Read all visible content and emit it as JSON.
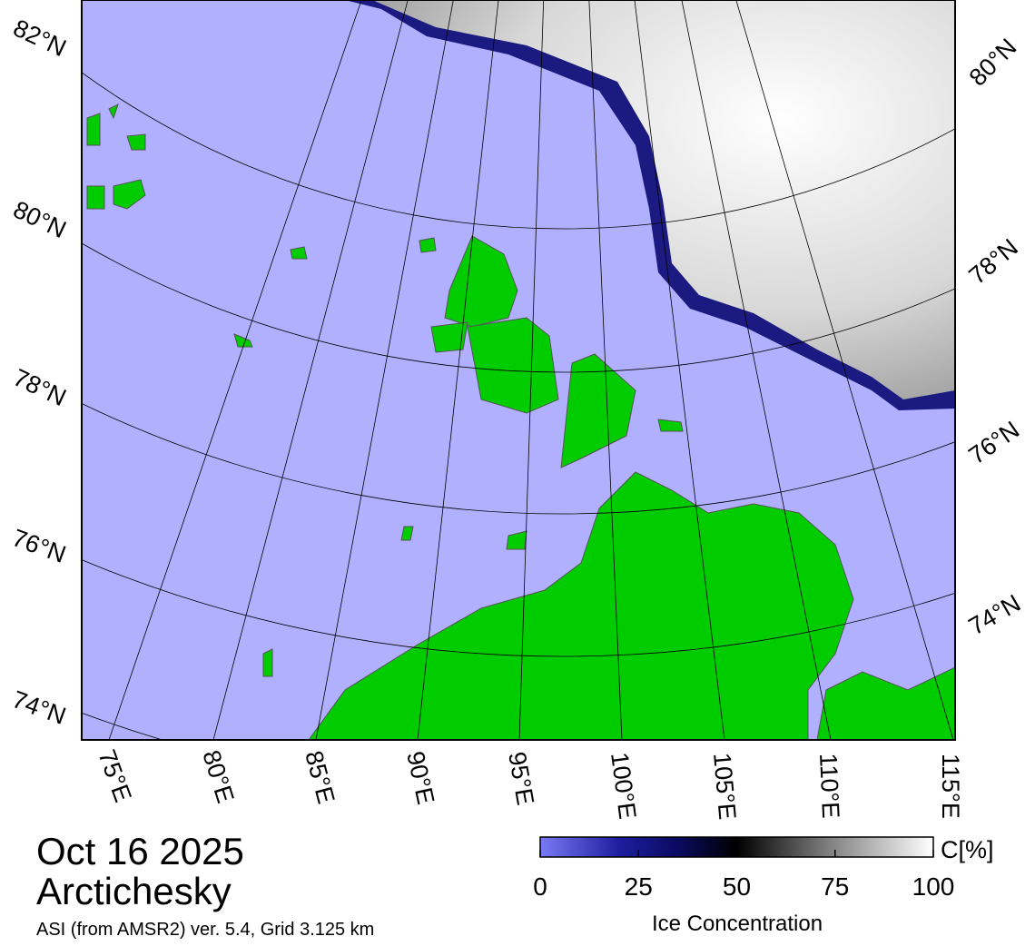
{
  "map": {
    "lat_labels_left": [
      "82°N",
      "80°N",
      "78°N",
      "76°N",
      "74°N"
    ],
    "lat_labels_right": [
      "80°N",
      "78°N",
      "76°N",
      "74°N"
    ],
    "lon_labels": [
      "75°E",
      "80°E",
      "85°E",
      "90°E",
      "95°E",
      "100°E",
      "105°E",
      "110°E",
      "115°E"
    ]
  },
  "caption": {
    "date": "Oct 16 2025",
    "region": "Arctichesky",
    "source": "ASI (from AMSR2) ver. 5.4,  Grid 3.125 km"
  },
  "colorbar": {
    "label": "Ice Concentration",
    "unit": "C[%]",
    "range": [
      0,
      100
    ],
    "ticks": [
      0,
      25,
      50,
      75,
      100
    ]
  }
}
